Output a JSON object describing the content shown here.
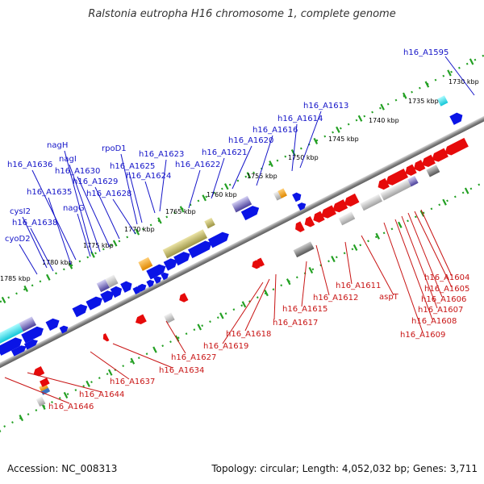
{
  "title": "Ralstonia eutropha H16 chromosome 1, complete genome",
  "accession": "Accession: NC_008313",
  "summary": "Topology: circular; Length: 4,052,032 bp; Genes: 3,711",
  "colors": {
    "forward_gene": "#0a14e6",
    "reverse_gene": "#e60a0a",
    "forward_label": "#1414c8",
    "reverse_label": "#c81414",
    "backbone": "#8c8c8c",
    "tick": "#23a023"
  },
  "position_ticks": [
    "1730 kbp",
    "1735 kbp",
    "1740 kbp",
    "1745 kbp",
    "1750 kbp",
    "1755 kbp",
    "1760 kbp",
    "1765 kbp",
    "1770 kbp",
    "1775 kbp",
    "1780 kbp",
    "1785 kbp"
  ],
  "forward_labels": [
    "h16_A1595",
    "h16_A1613",
    "h16_A1614",
    "h16_A1616",
    "h16_A1620",
    "h16_A1621",
    "h16_A1622",
    "h16_A1623",
    "h16_A1624",
    "h16_A1625",
    "rpoD1",
    "h16_A1628",
    "h16_A1629",
    "h16_A1630",
    "nagI",
    "nagH",
    "h16_A1636",
    "h16_A1635",
    "nagG",
    "cysI2",
    "h16_A1638",
    "cyoD2"
  ],
  "reverse_labels": [
    "h16_A1604",
    "h16_A1605",
    "h16_A1606",
    "h16_A1607",
    "h16_A1608",
    "h16_A1609",
    "aspT",
    "h16_A1611",
    "h16_A1612",
    "h16_A1615",
    "h16_A1617",
    "h16_A1618",
    "h16_A1619",
    "h16_A1627",
    "h16_A1634",
    "h16_A1637",
    "h16_A1644",
    "h16_A1646"
  ]
}
